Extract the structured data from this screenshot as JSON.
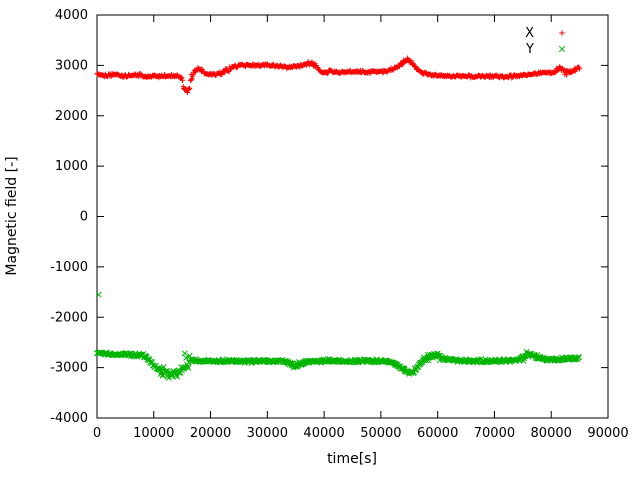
{
  "chart_data": {
    "type": "scatter",
    "title": "",
    "xlabel": "time[s]",
    "ylabel": "Magnetic field [-]",
    "xlim": [
      0,
      90000
    ],
    "ylim": [
      -4000,
      4000
    ],
    "xticks": [
      0,
      10000,
      20000,
      30000,
      40000,
      50000,
      60000,
      70000,
      80000,
      90000
    ],
    "yticks": [
      -4000,
      -3000,
      -2000,
      -1000,
      0,
      1000,
      2000,
      3000,
      4000
    ],
    "grid": false,
    "legend_position": "top-right-inside",
    "legend": [
      {
        "label": "X",
        "color": "#ff0000",
        "marker": "plus"
      },
      {
        "label": "Y",
        "color": "#00b400",
        "marker": "cross"
      }
    ],
    "series": [
      {
        "name": "X",
        "color": "#ff0000",
        "marker": "plus",
        "noise_default": 35,
        "noise_regions": [
          [
            14800,
            16800,
            100
          ],
          [
            21000,
            24000,
            45
          ],
          [
            36000,
            38800,
            55
          ],
          [
            53000,
            56000,
            55
          ],
          [
            80500,
            85000,
            65
          ]
        ],
        "outliers": [],
        "keypoints": [
          [
            0,
            2820
          ],
          [
            1500,
            2800
          ],
          [
            3000,
            2810
          ],
          [
            4500,
            2790
          ],
          [
            6000,
            2800
          ],
          [
            7500,
            2810
          ],
          [
            9000,
            2770
          ],
          [
            10000,
            2800
          ],
          [
            11000,
            2780
          ],
          [
            12000,
            2800
          ],
          [
            13000,
            2790
          ],
          [
            14000,
            2800
          ],
          [
            14800,
            2750
          ],
          [
            15300,
            2600
          ],
          [
            15800,
            2500
          ],
          [
            16200,
            2560
          ],
          [
            16600,
            2750
          ],
          [
            17200,
            2900
          ],
          [
            17800,
            2950
          ],
          [
            18400,
            2900
          ],
          [
            19000,
            2840
          ],
          [
            20000,
            2810
          ],
          [
            21000,
            2830
          ],
          [
            22000,
            2860
          ],
          [
            23000,
            2910
          ],
          [
            24000,
            2970
          ],
          [
            25000,
            3000
          ],
          [
            26500,
            3005
          ],
          [
            28000,
            3000
          ],
          [
            29500,
            3000
          ],
          [
            31000,
            3000
          ],
          [
            32500,
            2980
          ],
          [
            33500,
            2950
          ],
          [
            34500,
            2965
          ],
          [
            35500,
            2990
          ],
          [
            36500,
            3010
          ],
          [
            37200,
            3050
          ],
          [
            38000,
            3030
          ],
          [
            38800,
            2950
          ],
          [
            39500,
            2880
          ],
          [
            40200,
            2850
          ],
          [
            41000,
            2900
          ],
          [
            41800,
            2880
          ],
          [
            42600,
            2850
          ],
          [
            43500,
            2860
          ],
          [
            44500,
            2875
          ],
          [
            45500,
            2885
          ],
          [
            46500,
            2870
          ],
          [
            47500,
            2860
          ],
          [
            48500,
            2880
          ],
          [
            49500,
            2875
          ],
          [
            50500,
            2885
          ],
          [
            51500,
            2905
          ],
          [
            52500,
            2950
          ],
          [
            53300,
            3000
          ],
          [
            54000,
            3060
          ],
          [
            54700,
            3100
          ],
          [
            55300,
            3070
          ],
          [
            55900,
            2980
          ],
          [
            56600,
            2900
          ],
          [
            57400,
            2850
          ],
          [
            58200,
            2820
          ],
          [
            59000,
            2800
          ],
          [
            60000,
            2790
          ],
          [
            61500,
            2785
          ],
          [
            63000,
            2780
          ],
          [
            64500,
            2782
          ],
          [
            66000,
            2780
          ],
          [
            67500,
            2780
          ],
          [
            69000,
            2782
          ],
          [
            70500,
            2780
          ],
          [
            72000,
            2780
          ],
          [
            73500,
            2785
          ],
          [
            75000,
            2795
          ],
          [
            76000,
            2810
          ],
          [
            77000,
            2830
          ],
          [
            78000,
            2855
          ],
          [
            79000,
            2865
          ],
          [
            80000,
            2855
          ],
          [
            80800,
            2880
          ],
          [
            81400,
            2950
          ],
          [
            82000,
            2905
          ],
          [
            82700,
            2860
          ],
          [
            83400,
            2880
          ],
          [
            84200,
            2920
          ],
          [
            85000,
            2950
          ]
        ]
      },
      {
        "name": "Y",
        "color": "#00b400",
        "marker": "cross",
        "noise_default": 40,
        "noise_regions": [
          [
            11000,
            15000,
            110
          ],
          [
            15250,
            16350,
            360
          ],
          [
            34000,
            36500,
            70
          ],
          [
            57200,
            60800,
            80
          ],
          [
            74800,
            77600,
            80
          ]
        ],
        "outliers": [
          [
            300,
            -1550
          ]
        ],
        "keypoints": [
          [
            0,
            -2720
          ],
          [
            1500,
            -2730
          ],
          [
            3000,
            -2735
          ],
          [
            4500,
            -2740
          ],
          [
            6000,
            -2745
          ],
          [
            7500,
            -2750
          ],
          [
            8500,
            -2770
          ],
          [
            9200,
            -2850
          ],
          [
            10000,
            -2950
          ],
          [
            10800,
            -3030
          ],
          [
            11600,
            -3080
          ],
          [
            12400,
            -3110
          ],
          [
            13200,
            -3120
          ],
          [
            14000,
            -3100
          ],
          [
            14700,
            -3060
          ],
          [
            15200,
            -2980
          ],
          [
            15700,
            -2880
          ],
          [
            16200,
            -2850
          ],
          [
            16800,
            -2860
          ],
          [
            17500,
            -2865
          ],
          [
            18500,
            -2870
          ],
          [
            20000,
            -2870
          ],
          [
            21500,
            -2865
          ],
          [
            23000,
            -2865
          ],
          [
            24500,
            -2860
          ],
          [
            26000,
            -2870
          ],
          [
            27500,
            -2875
          ],
          [
            29000,
            -2870
          ],
          [
            30500,
            -2870
          ],
          [
            32000,
            -2870
          ],
          [
            33500,
            -2890
          ],
          [
            34500,
            -2930
          ],
          [
            35300,
            -2950
          ],
          [
            36000,
            -2910
          ],
          [
            36800,
            -2875
          ],
          [
            38000,
            -2880
          ],
          [
            39500,
            -2870
          ],
          [
            41000,
            -2860
          ],
          [
            42500,
            -2865
          ],
          [
            44000,
            -2870
          ],
          [
            45500,
            -2875
          ],
          [
            47000,
            -2870
          ],
          [
            48500,
            -2868
          ],
          [
            50000,
            -2870
          ],
          [
            51500,
            -2890
          ],
          [
            52500,
            -2930
          ],
          [
            53400,
            -2990
          ],
          [
            54200,
            -3060
          ],
          [
            55000,
            -3120
          ],
          [
            55600,
            -3100
          ],
          [
            56200,
            -3020
          ],
          [
            56900,
            -2930
          ],
          [
            57600,
            -2850
          ],
          [
            58400,
            -2780
          ],
          [
            59200,
            -2750
          ],
          [
            60000,
            -2780
          ],
          [
            61000,
            -2820
          ],
          [
            62000,
            -2850
          ],
          [
            63500,
            -2858
          ],
          [
            65000,
            -2865
          ],
          [
            66500,
            -2870
          ],
          [
            68000,
            -2868
          ],
          [
            69500,
            -2870
          ],
          [
            71000,
            -2862
          ],
          [
            72500,
            -2858
          ],
          [
            74000,
            -2845
          ],
          [
            75000,
            -2800
          ],
          [
            75800,
            -2740
          ],
          [
            76400,
            -2715
          ],
          [
            77000,
            -2750
          ],
          [
            77800,
            -2800
          ],
          [
            78800,
            -2830
          ],
          [
            80000,
            -2840
          ],
          [
            81500,
            -2832
          ],
          [
            83000,
            -2822
          ],
          [
            84000,
            -2818
          ],
          [
            85000,
            -2810
          ]
        ]
      }
    ]
  }
}
